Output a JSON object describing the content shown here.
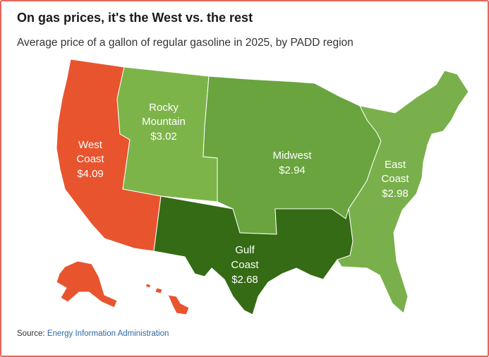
{
  "header": {
    "title": "On gas prices, it's the West vs. the rest",
    "subtitle": "Average price of a gallon of regular gasoline in 2025, by PADD region"
  },
  "colors": {
    "west_coast": "#e8542e",
    "rocky_mountain": "#7db44a",
    "midwest": "#69a43e",
    "east_coast": "#79b04b",
    "gulf_coast": "#346b14",
    "frame": "#e8645a"
  },
  "regions": {
    "west_coast": {
      "line1": "West",
      "line2": "Coast",
      "price": "$4.09",
      "value": 4.09
    },
    "rocky_mountain": {
      "line1": "Rocky",
      "line2": "Mountain",
      "price": "$3.02",
      "value": 3.02
    },
    "midwest": {
      "line1": "Midwest",
      "price": "$2.94",
      "value": 2.94
    },
    "east_coast": {
      "line1": "East",
      "line2": "Coast",
      "price": "$2.98",
      "value": 2.98
    },
    "gulf_coast": {
      "line1": "Gulf",
      "line2": "Coast",
      "price": "$2.68",
      "value": 2.68
    }
  },
  "footer": {
    "source_label": "Source:",
    "source_link": "Energy Information Administration"
  }
}
